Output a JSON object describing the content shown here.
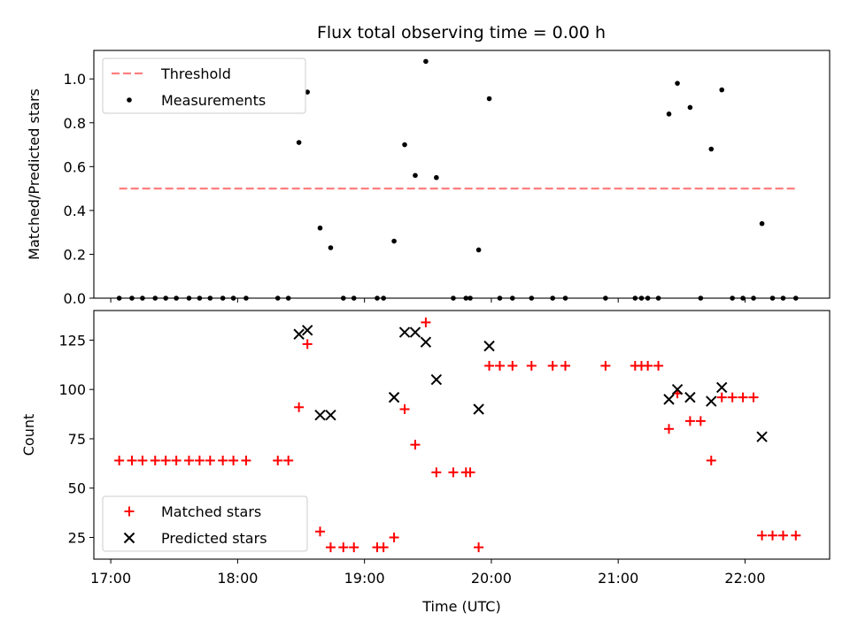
{
  "title": "Flux total observing time = 0.00 h",
  "chart_data": [
    {
      "type": "scatter",
      "ylabel": "Matched/Predicted stars",
      "xlabel": "",
      "xlim": [
        "16:52",
        "22:40"
      ],
      "ylim": [
        0,
        1.13
      ],
      "yticks": [
        "0.0",
        "0.2",
        "0.4",
        "0.6",
        "0.8",
        "1.0"
      ],
      "grid": false,
      "legend": {
        "placement": "top-left",
        "entries": [
          "Threshold",
          "Measurements"
        ]
      },
      "threshold": {
        "name": "Threshold",
        "value": 0.5,
        "x_start": "17:04",
        "x_end": "22:24",
        "color": "#ff7f7f",
        "style": "dashed"
      },
      "series": [
        {
          "name": "Measurements",
          "marker": "dot",
          "color": "#000000",
          "points": [
            [
              "17:04",
              0
            ],
            [
              "17:10",
              0
            ],
            [
              "17:15",
              0
            ],
            [
              "17:21",
              0
            ],
            [
              "17:26",
              0
            ],
            [
              "17:31",
              0
            ],
            [
              "17:37",
              0
            ],
            [
              "17:42",
              0
            ],
            [
              "17:47",
              0
            ],
            [
              "17:53",
              0
            ],
            [
              "17:58",
              0
            ],
            [
              "18:04",
              0
            ],
            [
              "18:19",
              0
            ],
            [
              "18:24",
              0
            ],
            [
              "18:29",
              0.71
            ],
            [
              "18:33",
              0.94
            ],
            [
              "18:39",
              0.32
            ],
            [
              "18:44",
              0.23
            ],
            [
              "18:50",
              0
            ],
            [
              "18:55",
              0
            ],
            [
              "19:06",
              0
            ],
            [
              "19:09",
              0
            ],
            [
              "19:14",
              0.26
            ],
            [
              "19:19",
              0.7
            ],
            [
              "19:24",
              0.56
            ],
            [
              "19:29",
              1.08
            ],
            [
              "19:34",
              0.55
            ],
            [
              "19:42",
              0
            ],
            [
              "19:48",
              0
            ],
            [
              "19:50",
              0
            ],
            [
              "19:54",
              0.22
            ],
            [
              "19:59",
              0.91
            ],
            [
              "20:04",
              0
            ],
            [
              "20:10",
              0
            ],
            [
              "20:19",
              0
            ],
            [
              "20:29",
              0
            ],
            [
              "20:35",
              0
            ],
            [
              "20:54",
              0
            ],
            [
              "21:08",
              0
            ],
            [
              "21:11",
              0
            ],
            [
              "21:14",
              0
            ],
            [
              "21:19",
              0
            ],
            [
              "21:24",
              0.84
            ],
            [
              "21:28",
              0.98
            ],
            [
              "21:34",
              0.87
            ],
            [
              "21:39",
              0
            ],
            [
              "21:44",
              0.68
            ],
            [
              "21:49",
              0.95
            ],
            [
              "21:54",
              0
            ],
            [
              "21:59",
              0
            ],
            [
              "22:04",
              0
            ],
            [
              "22:08",
              0.34
            ],
            [
              "22:13",
              0
            ],
            [
              "22:18",
              0
            ],
            [
              "22:24",
              0
            ]
          ]
        }
      ]
    },
    {
      "type": "scatter",
      "ylabel": "Count",
      "xlabel": "Time (UTC)",
      "xlim": [
        "16:52",
        "22:40"
      ],
      "ylim": [
        14,
        140
      ],
      "xticks": [
        "17:00",
        "18:00",
        "19:00",
        "20:00",
        "21:00",
        "22:00"
      ],
      "yticks": [
        "25",
        "50",
        "75",
        "100",
        "125"
      ],
      "grid": false,
      "legend": {
        "placement": "bottom-left",
        "entries": [
          "Matched stars",
          "Predicted stars"
        ]
      },
      "series": [
        {
          "name": "Matched stars",
          "marker": "plus",
          "color": "#ff0000",
          "points": [
            [
              "17:04",
              64
            ],
            [
              "17:10",
              64
            ],
            [
              "17:15",
              64
            ],
            [
              "17:21",
              64
            ],
            [
              "17:26",
              64
            ],
            [
              "17:31",
              64
            ],
            [
              "17:37",
              64
            ],
            [
              "17:42",
              64
            ],
            [
              "17:47",
              64
            ],
            [
              "17:53",
              64
            ],
            [
              "17:58",
              64
            ],
            [
              "18:04",
              64
            ],
            [
              "18:19",
              64
            ],
            [
              "18:24",
              64
            ],
            [
              "18:29",
              91
            ],
            [
              "18:33",
              123
            ],
            [
              "18:39",
              28
            ],
            [
              "18:44",
              20
            ],
            [
              "18:50",
              20
            ],
            [
              "18:55",
              20
            ],
            [
              "19:06",
              20
            ],
            [
              "19:09",
              20
            ],
            [
              "19:14",
              25
            ],
            [
              "19:19",
              90
            ],
            [
              "19:24",
              72
            ],
            [
              "19:29",
              134
            ],
            [
              "19:34",
              58
            ],
            [
              "19:42",
              58
            ],
            [
              "19:48",
              58
            ],
            [
              "19:50",
              58
            ],
            [
              "19:54",
              20
            ],
            [
              "19:59",
              112
            ],
            [
              "20:04",
              112
            ],
            [
              "20:10",
              112
            ],
            [
              "20:19",
              112
            ],
            [
              "20:29",
              112
            ],
            [
              "20:35",
              112
            ],
            [
              "20:54",
              112
            ],
            [
              "21:08",
              112
            ],
            [
              "21:11",
              112
            ],
            [
              "21:14",
              112
            ],
            [
              "21:19",
              112
            ],
            [
              "21:24",
              80
            ],
            [
              "21:28",
              98
            ],
            [
              "21:34",
              84
            ],
            [
              "21:39",
              84
            ],
            [
              "21:44",
              64
            ],
            [
              "21:49",
              96
            ],
            [
              "21:54",
              96
            ],
            [
              "21:59",
              96
            ],
            [
              "22:04",
              96
            ],
            [
              "22:08",
              26
            ],
            [
              "22:13",
              26
            ],
            [
              "22:18",
              26
            ],
            [
              "22:24",
              26
            ]
          ]
        },
        {
          "name": "Predicted stars",
          "marker": "x",
          "color": "#000000",
          "points": [
            [
              "18:29",
              128
            ],
            [
              "18:33",
              130
            ],
            [
              "18:39",
              87
            ],
            [
              "18:44",
              87
            ],
            [
              "19:14",
              96
            ],
            [
              "19:19",
              129
            ],
            [
              "19:24",
              129
            ],
            [
              "19:29",
              124
            ],
            [
              "19:34",
              105
            ],
            [
              "19:54",
              90
            ],
            [
              "19:59",
              122
            ],
            [
              "21:24",
              95
            ],
            [
              "21:28",
              100
            ],
            [
              "21:34",
              96
            ],
            [
              "21:44",
              94
            ],
            [
              "21:49",
              101
            ],
            [
              "22:08",
              76
            ]
          ]
        }
      ]
    }
  ]
}
